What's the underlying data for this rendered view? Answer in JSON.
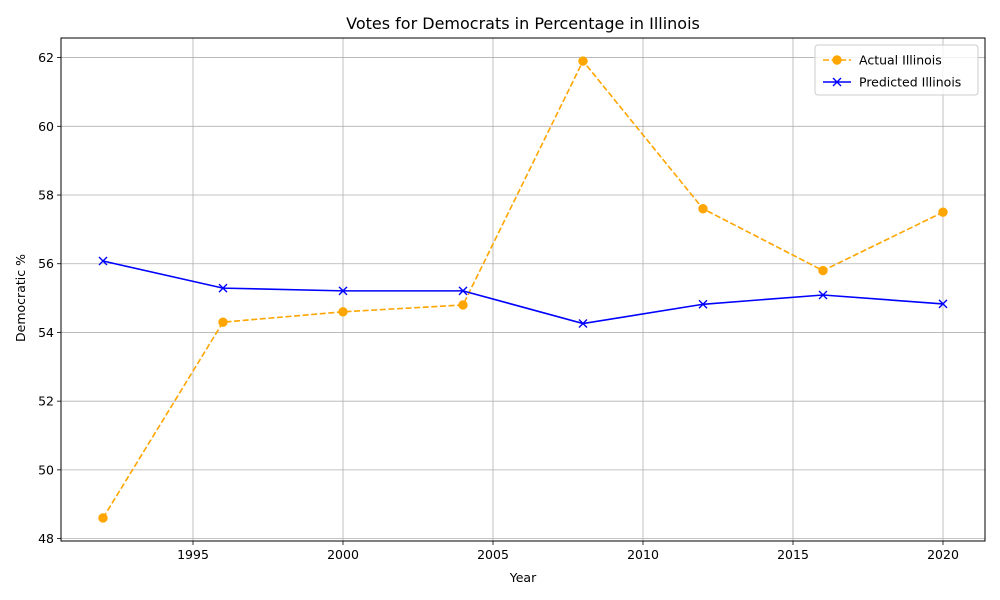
{
  "chart_data": {
    "type": "line",
    "title": "Votes for Democrats in Percentage in Illinois",
    "xlabel": "Year",
    "ylabel": "Democratic %",
    "xlim": [
      1990.6,
      2021.4
    ],
    "ylim": [
      47.93,
      62.57
    ],
    "xticks": [
      1995,
      2000,
      2005,
      2010,
      2015,
      2020
    ],
    "yticks": [
      48,
      50,
      52,
      54,
      56,
      58,
      60,
      62
    ],
    "grid": true,
    "legend_position": "top-right",
    "series": [
      {
        "name": "Actual Illinois",
        "color": "#FFA500",
        "line_style": "dashed",
        "marker": "circle",
        "x": [
          1992,
          1996,
          2000,
          2004,
          2008,
          2012,
          2016,
          2020
        ],
        "y": [
          48.6,
          54.3,
          54.6,
          54.8,
          61.9,
          57.6,
          55.8,
          57.5
        ]
      },
      {
        "name": "Predicted Illinois",
        "color": "#0000FF",
        "line_style": "solid",
        "marker": "x",
        "x": [
          1992,
          1996,
          2000,
          2004,
          2008,
          2012,
          2016,
          2020
        ],
        "y": [
          56.08,
          55.29,
          55.21,
          55.21,
          54.26,
          54.82,
          55.09,
          54.83
        ]
      }
    ]
  }
}
